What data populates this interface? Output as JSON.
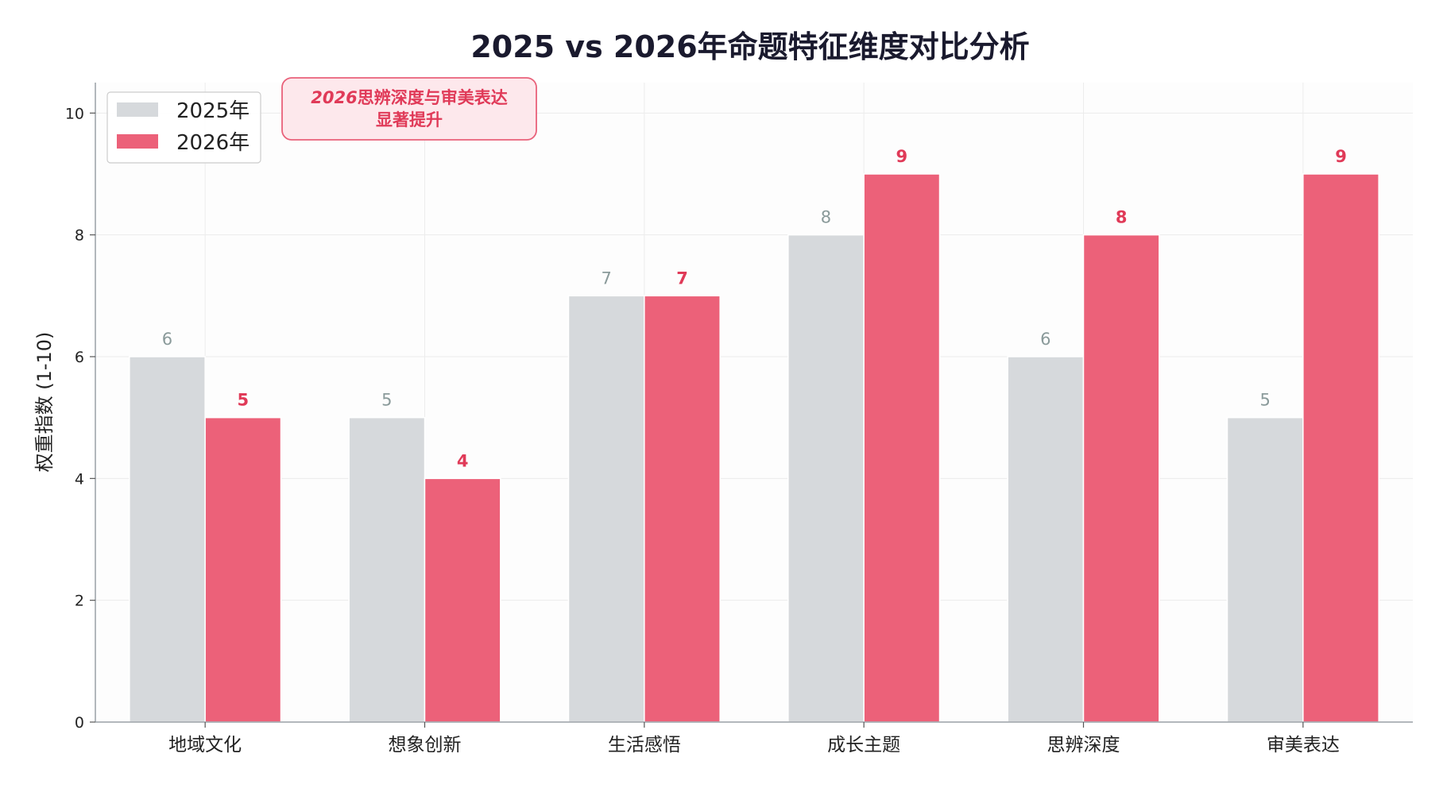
{
  "chart_data": {
    "type": "bar",
    "title": "2025 vs 2026年命题特征维度对比分析",
    "xlabel": "",
    "ylabel": "权重指数 (1-10)",
    "ylim": [
      0,
      10.5
    ],
    "yticks": [
      0,
      2,
      4,
      6,
      8,
      10
    ],
    "grid": true,
    "legend_position": "top-left",
    "categories": [
      "地域文化",
      "想象创新",
      "生活感悟",
      "成长主题",
      "思辨深度",
      "审美表达"
    ],
    "series": [
      {
        "name": "2025年",
        "values": [
          6,
          5,
          7,
          8,
          6,
          5
        ],
        "color": "#d6d9dc"
      },
      {
        "name": "2026年",
        "values": [
          5,
          4,
          7,
          9,
          8,
          9
        ],
        "color": "#ec6179"
      }
    ],
    "annotation": {
      "line1_italic": "2026",
      "line1_rest": "思辨深度与审美表达",
      "line2": "显著提升"
    }
  }
}
